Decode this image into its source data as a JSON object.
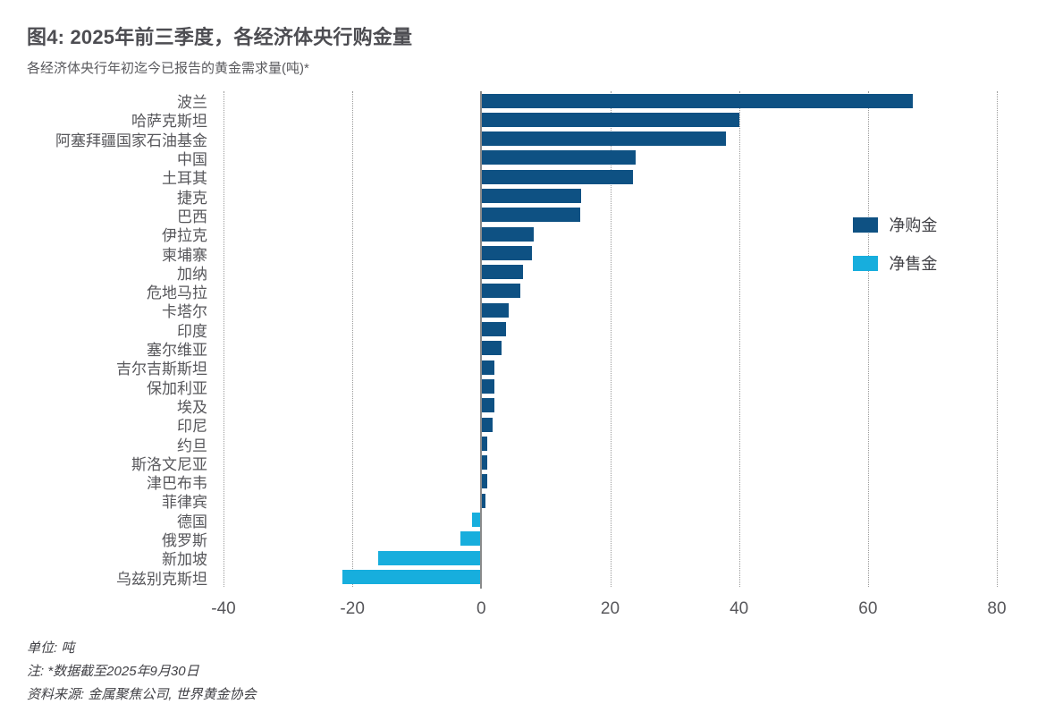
{
  "header": {
    "title": "图4: 2025年前三季度，各经济体央行购金量",
    "subtitle": "各经济体央行年初迄今已报告的黄金需求量(吨)*"
  },
  "legend": {
    "net_purchases": "净购金",
    "net_sales": "净售金"
  },
  "footer": {
    "unit": "单位: 吨",
    "note": "注: *数据截至2025年9月30日",
    "source": "资料来源: 金属聚焦公司, 世界黄金协会"
  },
  "colors": {
    "net_purchases": "#0E5183",
    "net_sales": "#17AEDD",
    "gridline": "#9B9B9B",
    "zero_axis": "#8A8A8A"
  },
  "chart_data": {
    "type": "bar",
    "orientation": "horizontal",
    "title": "图4: 2025年前三季度，各经济体央行购金量",
    "subtitle": "各经济体央行年初迄今已报告的黄金需求量(吨)*",
    "xlabel": "吨",
    "ylabel": "",
    "xlim": [
      -40,
      80
    ],
    "xticks": [
      -40,
      -20,
      0,
      20,
      40,
      60,
      80
    ],
    "grid": "vertical dotted gridlines, solid zero axis",
    "legend_position": "right",
    "series_rule": "positive = 净购金 (dark blue), negative = 净售金 (light blue)",
    "categories": [
      "波兰",
      "哈萨克斯坦",
      "阿塞拜疆国家石油基金",
      "中国",
      "土耳其",
      "捷克",
      "巴西",
      "伊拉克",
      "柬埔寨",
      "加纳",
      "危地马拉",
      "卡塔尔",
      "印度",
      "塞尔维亚",
      "吉尔吉斯斯坦",
      "保加利亚",
      "埃及",
      "印尼",
      "约旦",
      "斯洛文尼亚",
      "津巴布韦",
      "菲律宾",
      "德国",
      "俄罗斯",
      "新加坡",
      "乌兹别克斯坦"
    ],
    "values": [
      67,
      40,
      38,
      24,
      23.5,
      15.5,
      15.3,
      8.2,
      7.9,
      6.5,
      6,
      4.3,
      3.9,
      3.2,
      2.1,
      2,
      2,
      1.8,
      0.9,
      0.9,
      0.9,
      0.6,
      -1.5,
      -3.3,
      -16,
      -21.5
    ]
  }
}
